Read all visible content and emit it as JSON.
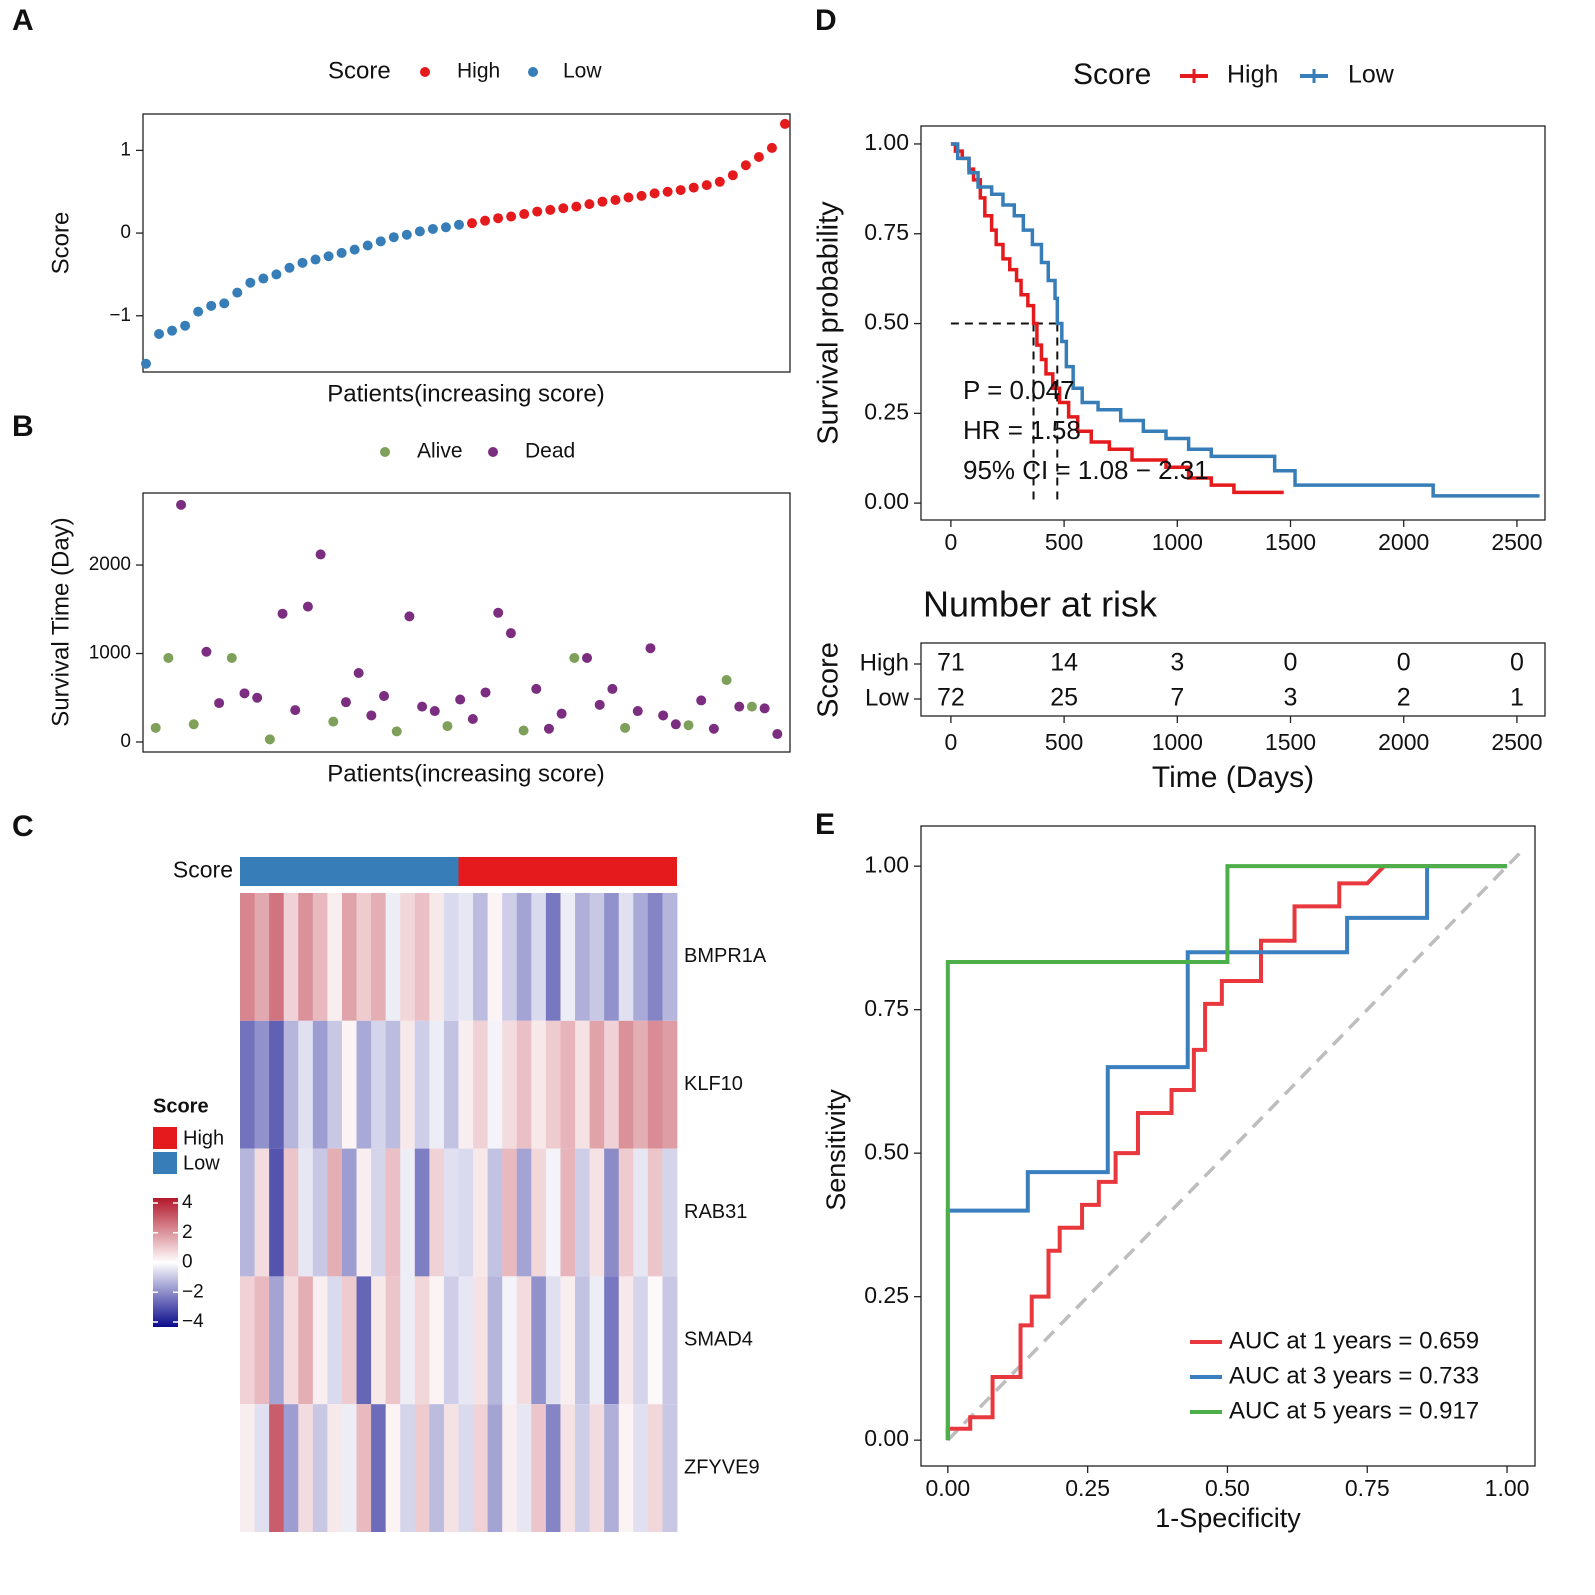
{
  "chart_data": [
    {
      "type": "scatter",
      "label": "A",
      "legend_title": "Score",
      "ylabel": "Score",
      "xlabel": "Patients(increasing score)",
      "ylim": [
        -1.68,
        1.44
      ],
      "yticks": [
        {
          "value": -1,
          "label": "−1"
        },
        0,
        1
      ],
      "series": [
        {
          "name": "High",
          "color": "#e41a1c",
          "values": [
            0.12,
            0.15,
            0.18,
            0.2,
            0.23,
            0.26,
            0.28,
            0.3,
            0.32,
            0.35,
            0.38,
            0.4,
            0.43,
            0.45,
            0.48,
            0.5,
            0.52,
            0.55,
            0.58,
            0.62,
            0.7,
            0.82,
            0.92,
            1.03,
            1.32
          ]
        },
        {
          "name": "Low",
          "color": "#377eb8",
          "values": [
            -1.58,
            -1.22,
            -1.18,
            -1.12,
            -0.95,
            -0.88,
            -0.85,
            -0.72,
            -0.6,
            -0.55,
            -0.5,
            -0.42,
            -0.36,
            -0.32,
            -0.28,
            -0.24,
            -0.2,
            -0.15,
            -0.1,
            -0.05,
            -0.02,
            0.02,
            0.05,
            0.07,
            0.1
          ]
        }
      ]
    },
    {
      "type": "scatter",
      "label": "B",
      "ylabel": "Survival Time (Day)",
      "xlabel": "Patients(increasing score)",
      "xlim": [
        0,
        51
      ],
      "ylim": [
        -113,
        2814
      ],
      "yticks": [
        0,
        1000,
        2000
      ],
      "series": [
        {
          "name": "Alive",
          "color": "#7fa05a",
          "x": [
            1,
            2,
            4,
            7,
            10,
            15,
            20,
            24,
            30,
            34,
            38,
            43,
            46,
            48
          ],
          "values": [
            160,
            950,
            200,
            950,
            30,
            230,
            120,
            180,
            130,
            950,
            160,
            190,
            700,
            400
          ]
        },
        {
          "name": "Dead",
          "color": "#7b2d7f",
          "x": [
            3,
            5,
            6,
            8,
            9,
            11,
            12,
            13,
            14,
            16,
            17,
            18,
            19,
            21,
            22,
            23,
            25,
            26,
            27,
            28,
            29,
            31,
            32,
            33,
            35,
            36,
            37,
            39,
            40,
            41,
            42,
            44,
            45,
            47,
            49,
            50
          ],
          "values": [
            2680,
            1020,
            440,
            550,
            500,
            1450,
            360,
            1530,
            2120,
            450,
            780,
            300,
            520,
            1420,
            400,
            350,
            480,
            260,
            560,
            1460,
            1230,
            600,
            150,
            320,
            950,
            420,
            600,
            350,
            1060,
            300,
            200,
            470,
            150,
            400,
            380,
            90
          ]
        }
      ]
    },
    {
      "type": "heatmap",
      "label": "C",
      "rows": [
        "BMPR1A",
        "KLF10",
        "RAB31",
        "SMAD4",
        "ZFYVE9"
      ],
      "annotation": {
        "title": "Score",
        "groups": [
          {
            "name": "High",
            "color": "#e41a1c",
            "count": 15
          },
          {
            "name": "Low",
            "color": "#377eb8",
            "count": 15
          }
        ]
      },
      "colors": [
        "#0a0a8c",
        "#ffffff",
        "#b2182b"
      ],
      "clim": [
        -4,
        4
      ],
      "cticks": [
        4,
        2,
        0,
        {
          "value": -2,
          "label": "−2"
        },
        {
          "value": -4,
          "label": "−4"
        }
      ],
      "values": [
        [
          2.1,
          1.5,
          2.4,
          0.8,
          1.9,
          1.2,
          0.3,
          1.6,
          0.9,
          1.4,
          -0.3,
          0.7,
          1.1,
          0.4,
          -0.6,
          -0.4,
          -1.1,
          0.2,
          -0.8,
          -1.5,
          -0.6,
          -2.2,
          -0.3,
          -1.3,
          -0.9,
          -1.8,
          -0.5,
          -1.4,
          -2.0,
          -1.2
        ],
        [
          -2.3,
          -1.8,
          -2.6,
          -1.2,
          -0.5,
          -1.6,
          -0.9,
          0.2,
          -1.4,
          -0.7,
          -1.1,
          0.4,
          -0.8,
          -0.3,
          -1.0,
          0.3,
          0.8,
          -0.2,
          0.6,
          1.1,
          0.4,
          0.9,
          1.3,
          0.5,
          1.6,
          0.8,
          1.9,
          1.4,
          2.0,
          1.7
        ],
        [
          -1.2,
          0.6,
          -2.8,
          1.0,
          -0.4,
          -0.9,
          1.4,
          -1.6,
          0.3,
          -0.7,
          1.1,
          -0.3,
          -2.1,
          0.8,
          -0.5,
          -0.6,
          0.4,
          -1.0,
          1.2,
          -1.5,
          0.7,
          -0.2,
          1.3,
          -0.8,
          0.5,
          -1.9,
          0.9,
          -0.4,
          1.0,
          -0.7
        ],
        [
          0.8,
          1.2,
          -1.5,
          0.6,
          1.4,
          0.3,
          -0.6,
          0.9,
          -2.5,
          0.4,
          1.0,
          -0.3,
          0.7,
          0.2,
          -0.8,
          -0.4,
          0.5,
          -1.2,
          -0.2,
          0.6,
          -1.8,
          -0.5,
          0.3,
          -1.0,
          -0.3,
          -2.2,
          0.4,
          -0.7,
          0.1,
          -0.9
        ],
        [
          0.3,
          -0.5,
          2.8,
          -1.6,
          0.6,
          -0.9,
          0.4,
          -0.3,
          1.2,
          -2.4,
          0.2,
          -0.7,
          0.9,
          -1.1,
          0.5,
          -0.6,
          0.8,
          -1.5,
          0.3,
          -0.4,
          1.0,
          -2.0,
          0.5,
          -0.8,
          0.6,
          -1.3,
          0.2,
          -0.5,
          0.7,
          -0.9
        ]
      ]
    },
    {
      "type": "step",
      "label": "D",
      "legend_title": "Score",
      "ylabel": "Survival probability",
      "xlim": [
        -132,
        2624
      ],
      "xticks": [
        0,
        500,
        1000,
        1500,
        2000,
        2500
      ],
      "ylim": [
        -0.047,
        1.05
      ],
      "yticks": [
        {
          "value": 0,
          "label": "0.00"
        },
        0.25,
        {
          "value": 0.5,
          "label": "0.50"
        },
        0.75,
        {
          "value": 1,
          "label": "1.00"
        }
      ],
      "annotations": [
        "P = 0.047",
        "HR = 1.58",
        "95% CI = 1.08 − 2.31"
      ],
      "medians": [
        {
          "x": 365,
          "y": 0.5
        },
        {
          "x": 470,
          "y": 0.5
        }
      ],
      "series": [
        {
          "name": "High",
          "color": "#e41a1c",
          "x": [
            0,
            20,
            50,
            80,
            100,
            130,
            150,
            180,
            200,
            230,
            260,
            290,
            310,
            340,
            365,
            380,
            400,
            420,
            450,
            480,
            520,
            560,
            620,
            700,
            800,
            950,
            1050,
            1150,
            1250,
            1470
          ],
          "values": [
            1,
            0.98,
            0.96,
            0.93,
            0.9,
            0.85,
            0.8,
            0.76,
            0.72,
            0.68,
            0.65,
            0.62,
            0.58,
            0.55,
            0.5,
            0.44,
            0.4,
            0.36,
            0.32,
            0.28,
            0.24,
            0.2,
            0.17,
            0.15,
            0.12,
            0.1,
            0.07,
            0.05,
            0.03,
            0.03
          ]
        },
        {
          "name": "Low",
          "color": "#377eb8",
          "x": [
            0,
            30,
            80,
            120,
            180,
            230,
            280,
            320,
            360,
            400,
            430,
            460,
            470,
            490,
            510,
            540,
            580,
            650,
            750,
            850,
            950,
            1050,
            1150,
            1400,
            1430,
            1520,
            2130,
            2600
          ],
          "values": [
            1,
            0.96,
            0.92,
            0.88,
            0.86,
            0.83,
            0.8,
            0.76,
            0.72,
            0.67,
            0.62,
            0.57,
            0.5,
            0.45,
            0.38,
            0.32,
            0.28,
            0.26,
            0.23,
            0.2,
            0.18,
            0.15,
            0.13,
            0.13,
            0.09,
            0.05,
            0.02,
            0.02
          ]
        }
      ],
      "risk_table": {
        "title": "Number at risk",
        "ylabel": "Score",
        "xlabel": "Time (Days)",
        "rows": [
          {
            "name": "High",
            "color": "#e41a1c",
            "values": [
              71,
              14,
              3,
              0,
              0,
              0
            ]
          },
          {
            "name": "Low",
            "color": "#377eb8",
            "values": [
              72,
              25,
              7,
              3,
              2,
              1
            ]
          }
        ]
      }
    },
    {
      "type": "line",
      "label": "E",
      "xlabel": "1-Specificity",
      "ylabel": "Sensitivity",
      "xlim": [
        -0.048,
        1.05
      ],
      "xticks": [
        {
          "value": 0,
          "label": "0.00"
        },
        0.25,
        {
          "value": 0.5,
          "label": "0.50"
        },
        0.75,
        {
          "value": 1,
          "label": "1.00"
        }
      ],
      "ylim": [
        -0.045,
        1.07
      ],
      "yticks": [
        {
          "value": 0,
          "label": "0.00"
        },
        0.25,
        {
          "value": 0.5,
          "label": "0.50"
        },
        0.75,
        {
          "value": 1,
          "label": "1.00"
        }
      ],
      "series": [
        {
          "name": "AUC at 1 years = 0.659",
          "color": "#e8383d",
          "x": [
            0,
            0,
            0.04,
            0.04,
            0.08,
            0.08,
            0.13,
            0.13,
            0.15,
            0.15,
            0.18,
            0.18,
            0.2,
            0.2,
            0.24,
            0.24,
            0.27,
            0.27,
            0.3,
            0.3,
            0.34,
            0.34,
            0.4,
            0.4,
            0.44,
            0.44,
            0.46,
            0.46,
            0.49,
            0.49,
            0.56,
            0.56,
            0.62,
            0.62,
            0.7,
            0.7,
            0.75,
            0.78,
            1
          ],
          "values": [
            0,
            0.02,
            0.02,
            0.04,
            0.04,
            0.11,
            0.11,
            0.2,
            0.2,
            0.25,
            0.25,
            0.33,
            0.33,
            0.37,
            0.37,
            0.41,
            0.41,
            0.45,
            0.45,
            0.5,
            0.5,
            0.57,
            0.57,
            0.61,
            0.61,
            0.68,
            0.68,
            0.76,
            0.76,
            0.8,
            0.8,
            0.87,
            0.87,
            0.93,
            0.93,
            0.97,
            0.97,
            1,
            1
          ]
        },
        {
          "name": "AUC at 3 years = 0.733",
          "color": "#3a7fbf",
          "x": [
            0,
            0,
            0.143,
            0.143,
            0.286,
            0.286,
            0.429,
            0.429,
            0.714,
            0.714,
            0.857,
            0.857,
            1
          ],
          "values": [
            0,
            0.4,
            0.4,
            0.467,
            0.467,
            0.65,
            0.65,
            0.85,
            0.85,
            0.91,
            0.91,
            1,
            1
          ]
        },
        {
          "name": "AUC at 5 years = 0.917",
          "color": "#4daf4a",
          "x": [
            0,
            0,
            0.5,
            0.5,
            1
          ],
          "values": [
            0,
            0.833,
            0.833,
            1,
            1
          ]
        }
      ]
    }
  ]
}
